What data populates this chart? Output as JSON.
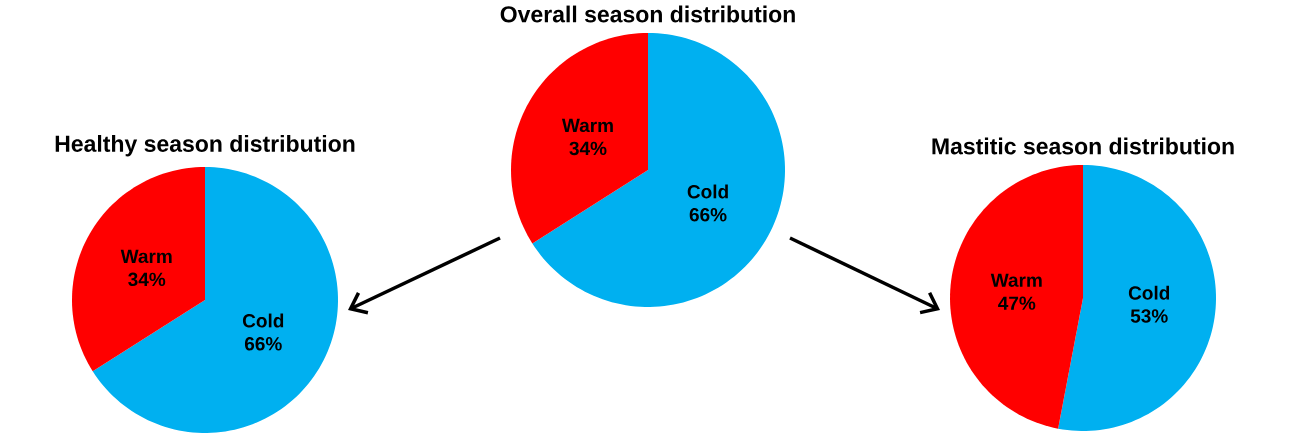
{
  "chart_data": [
    {
      "type": "pie",
      "title": "Overall season distribution",
      "categories": [
        "Cold",
        "Warm"
      ],
      "values": [
        66,
        34
      ],
      "colors": [
        "#00b0f0",
        "#ff0000"
      ],
      "value_labels": [
        "66%",
        "34%"
      ]
    },
    {
      "type": "pie",
      "title": "Healthy season distribution",
      "categories": [
        "Cold",
        "Warm"
      ],
      "values": [
        66,
        34
      ],
      "colors": [
        "#00b0f0",
        "#ff0000"
      ],
      "value_labels": [
        "66%",
        "34%"
      ]
    },
    {
      "type": "pie",
      "title": "Mastitic season distribution",
      "categories": [
        "Cold",
        "Warm"
      ],
      "values": [
        53,
        47
      ],
      "colors": [
        "#00b0f0",
        "#ff0000"
      ],
      "value_labels": [
        "53%",
        "47%"
      ]
    }
  ]
}
